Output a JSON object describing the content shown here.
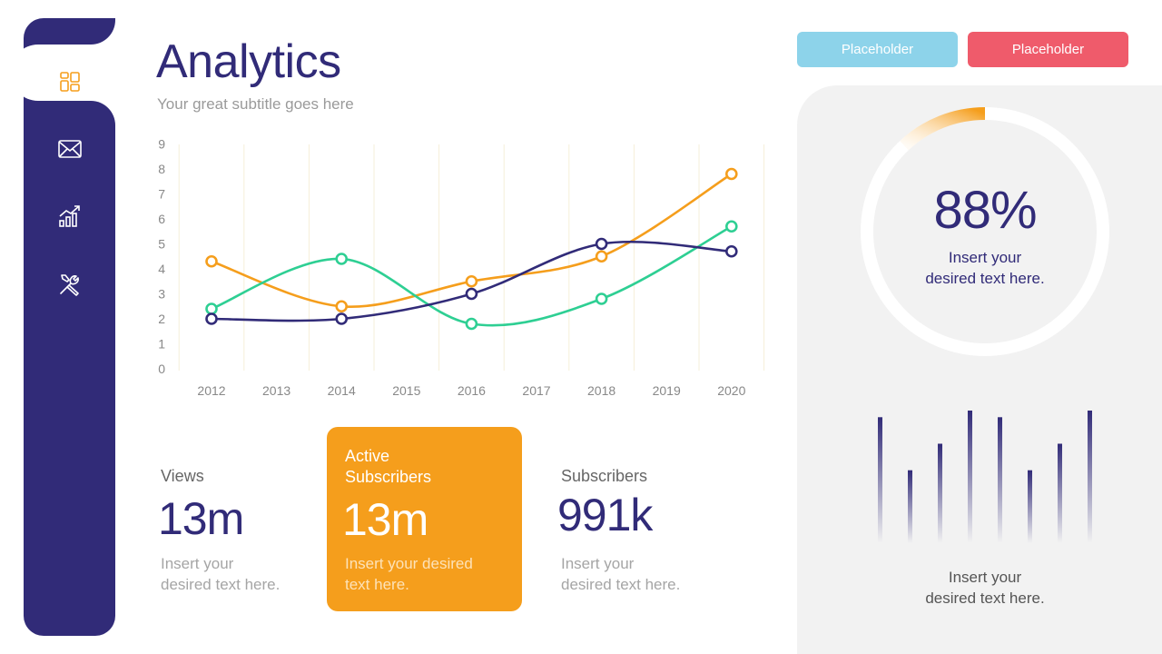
{
  "header": {
    "title": "Analytics",
    "subtitle": "Your great subtitle goes here",
    "button_1": "Placeholder",
    "button_2": "Placeholder"
  },
  "sidebar": {
    "items": [
      {
        "icon": "dashboard-icon",
        "active": true
      },
      {
        "icon": "mail-icon",
        "active": false
      },
      {
        "icon": "growth-chart-icon",
        "active": false
      },
      {
        "icon": "tools-icon",
        "active": false
      }
    ]
  },
  "colors": {
    "navy": "#312b78",
    "orange": "#f59e1c",
    "green": "#2ecf93",
    "light_blue": "#8dd3ea",
    "red": "#ef5b6b"
  },
  "chart_data": {
    "type": "line",
    "x": [
      "2012",
      "2013",
      "2014",
      "2015",
      "2016",
      "2017",
      "2018",
      "2019",
      "2020"
    ],
    "yticks": [
      "0",
      "1",
      "2",
      "3",
      "4",
      "5",
      "6",
      "7",
      "8",
      "9"
    ],
    "ylim": [
      0,
      9
    ],
    "grid": "vertical",
    "series": [
      {
        "color": "#f59e1c",
        "points": [
          [
            "2012",
            4.3
          ],
          [
            "2014",
            2.5
          ],
          [
            "2016",
            3.5
          ],
          [
            "2018",
            4.5
          ],
          [
            "2020",
            7.8
          ]
        ]
      },
      {
        "color": "#2ecf93",
        "points": [
          [
            "2012",
            2.4
          ],
          [
            "2014",
            4.4
          ],
          [
            "2016",
            1.8
          ],
          [
            "2018",
            2.8
          ],
          [
            "2020",
            5.7
          ]
        ]
      },
      {
        "color": "#312b78",
        "points": [
          [
            "2012",
            2.0
          ],
          [
            "2014",
            2.0
          ],
          [
            "2016",
            3.0
          ],
          [
            "2018",
            5.0
          ],
          [
            "2020",
            4.7
          ]
        ]
      }
    ]
  },
  "stats": {
    "views": {
      "label": "Views",
      "value": "13m",
      "desc_1": "Insert your",
      "desc_2": "desired text here."
    },
    "active": {
      "label_1": "Active",
      "label_2": "Subscribers",
      "value": "13m",
      "desc_1": "Insert your desired",
      "desc_2": "text here."
    },
    "subscribers": {
      "label": "Subscribers",
      "value": "991k",
      "desc_1": "Insert your",
      "desc_2": "desired text here."
    }
  },
  "gauge": {
    "value": "88%",
    "fraction": 0.88,
    "desc_1": "Insert your",
    "desc_2": "desired text here."
  },
  "bar_chart": {
    "values": [
      0.95,
      0.55,
      0.75,
      1.0,
      0.95,
      0.55,
      0.75,
      1.0
    ],
    "desc_1": "Insert your",
    "desc_2": "desired text here."
  }
}
